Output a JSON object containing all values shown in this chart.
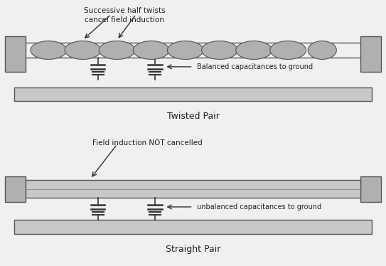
{
  "bg_color": "#f0f0f0",
  "panel_bg": "#ffffff",
  "gray_fill": "#b0b0b0",
  "dark_gray": "#888888",
  "light_gray": "#c8c8c8",
  "connector_color": "#a0a0a0",
  "ellipse_color": "#b0b0b0",
  "text_color": "#222222",
  "title1": "Twisted Pair",
  "title2": "Straight Pair",
  "label1": "Successive half twists\ncancel field induction",
  "label2": "Balanced capacitances to ground",
  "label3": "Field induction NOT cancelled",
  "label4": "unbalanced capacitances to ground"
}
